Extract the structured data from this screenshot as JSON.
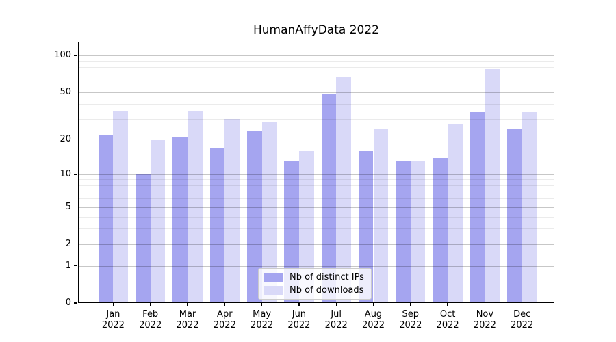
{
  "chart_data": {
    "type": "bar",
    "title": "HumanAffyData 2022",
    "categories": [
      "Jan",
      "Feb",
      "Mar",
      "Apr",
      "May",
      "Jun",
      "Jul",
      "Aug",
      "Sep",
      "Oct",
      "Nov",
      "Dec"
    ],
    "x_year_label": "2022",
    "series": [
      {
        "name": "Nb of distinct IPs",
        "color": "#a5a5f0",
        "values": [
          22,
          10,
          21,
          17,
          24,
          13,
          48,
          16,
          13,
          14,
          34,
          25
        ]
      },
      {
        "name": "Nb of downloads",
        "color": "#d9d9f8",
        "values": [
          35,
          20,
          35,
          30,
          28,
          16,
          67,
          25,
          13,
          27,
          77,
          34
        ]
      }
    ],
    "yscale": "log1p",
    "ylim": [
      0,
      129.5
    ],
    "yticks": [
      0,
      1,
      2,
      5,
      10,
      20,
      50,
      100
    ],
    "yticks_minor": [
      3,
      4,
      6,
      7,
      8,
      9,
      30,
      40,
      60,
      70,
      80,
      90
    ],
    "grid": "horizontal",
    "legend_position": "lower-center-inside",
    "background_color": "#ffffff"
  }
}
